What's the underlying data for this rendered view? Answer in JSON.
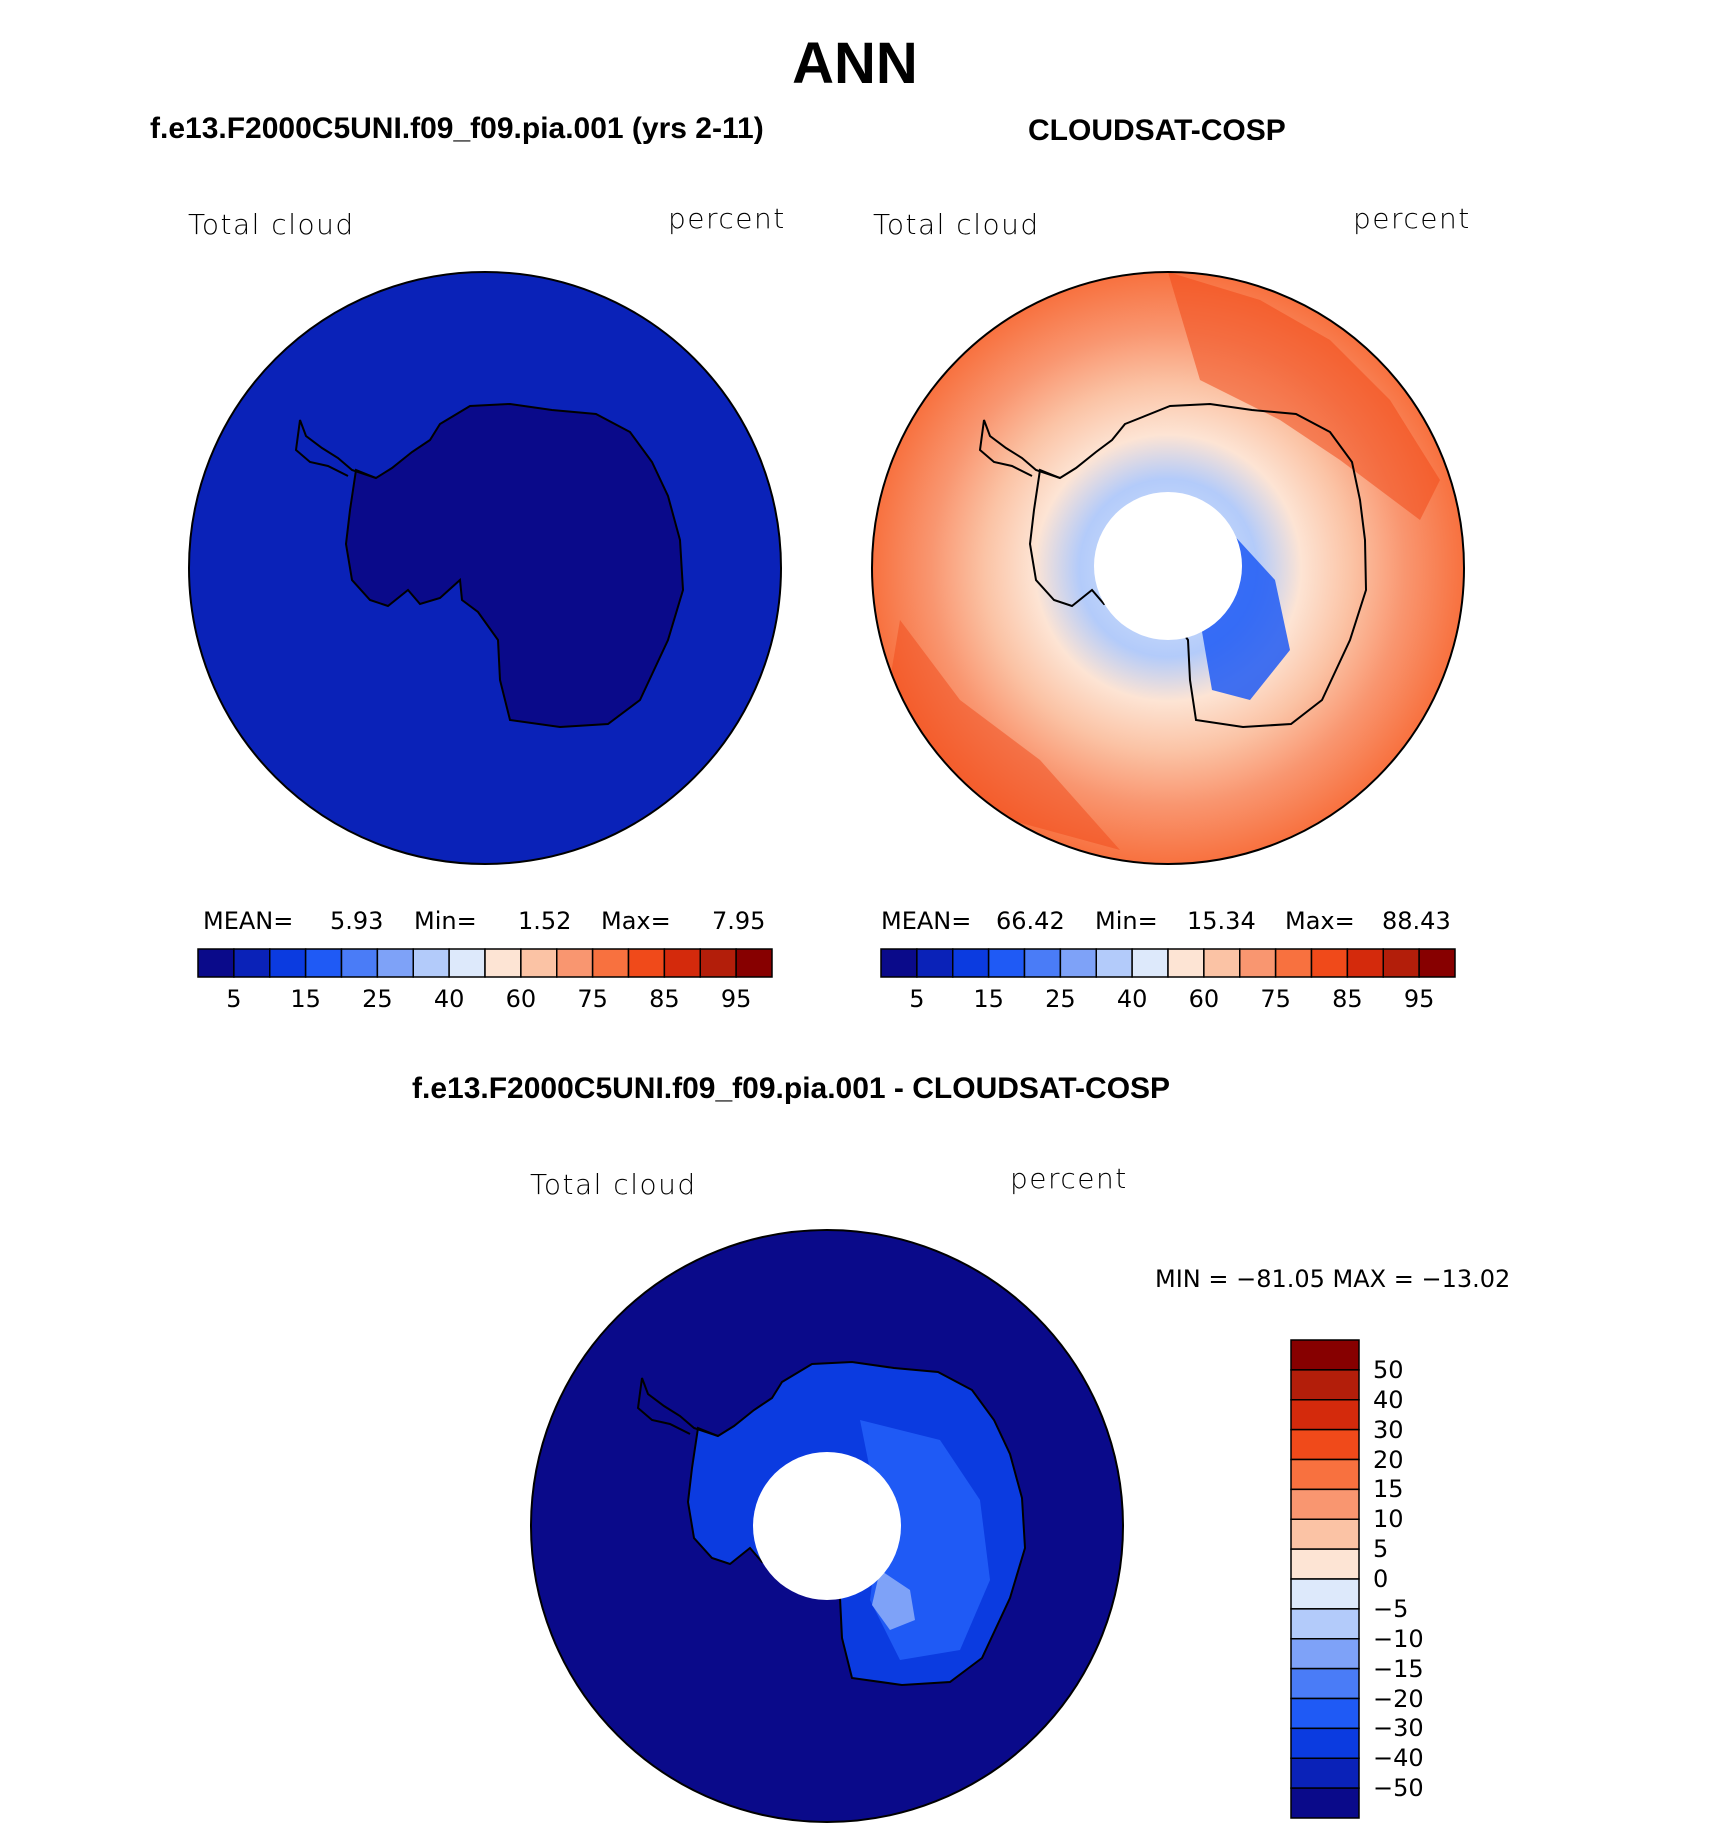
{
  "page": {
    "title": "ANN"
  },
  "panel_left": {
    "title": "f.e13.F2000C5UNI.f09_f09.pia.001 (yrs 2-11)",
    "variable": "Total cloud",
    "units": "percent",
    "mean_label": "MEAN=",
    "mean_value": "5.93",
    "min_label": "Min=",
    "min_value": "1.52",
    "max_label": "Max=",
    "max_value": "7.95",
    "colorbar_ticks": [
      "5",
      "15",
      "25",
      "40",
      "60",
      "75",
      "85",
      "95"
    ]
  },
  "panel_right": {
    "title": "CLOUDSAT-COSP",
    "variable": "Total cloud",
    "units": "percent",
    "mean_label": "MEAN=",
    "mean_value": "66.42",
    "min_label": "Min=",
    "min_value": "15.34",
    "max_label": "Max=",
    "max_value": "88.43",
    "colorbar_ticks": [
      "5",
      "15",
      "25",
      "40",
      "60",
      "75",
      "85",
      "95"
    ]
  },
  "panel_diff": {
    "title": "f.e13.F2000C5UNI.f09_f09.pia.001 - CLOUDSAT-COSP",
    "variable": "Total cloud",
    "units": "percent",
    "minmax_text": "MIN = −81.05 MAX = −13.02",
    "colorbar_ticks": [
      "50",
      "40",
      "30",
      "20",
      "15",
      "10",
      "5",
      "0",
      "−5",
      "−10",
      "−15",
      "−20",
      "−30",
      "−40",
      "−50"
    ]
  },
  "colors": {
    "abs_scale": [
      "#0a0a8a",
      "#0a22b8",
      "#0b3be0",
      "#1f5af5",
      "#4a7cf7",
      "#7ea2f8",
      "#b3cbfa",
      "#dde9fb",
      "#fde4d4",
      "#fbc3a5",
      "#f99670",
      "#f8713f",
      "#f04a1a",
      "#d42a0c",
      "#b31e0a",
      "#870000"
    ],
    "diff_scale": [
      "#870000",
      "#b31e0a",
      "#d42a0c",
      "#f04a1a",
      "#f8713f",
      "#f99670",
      "#fbc3a5",
      "#fde4d4",
      "#dde9fb",
      "#b3cbfa",
      "#7ea2f8",
      "#4a7cf7",
      "#1f5af5",
      "#0b3be0",
      "#0a22b8",
      "#0a0a8a"
    ],
    "model_ocean": "#0a22b8",
    "model_land": "#0a0a8a",
    "diff_ocean": "#0a0a8a"
  }
}
